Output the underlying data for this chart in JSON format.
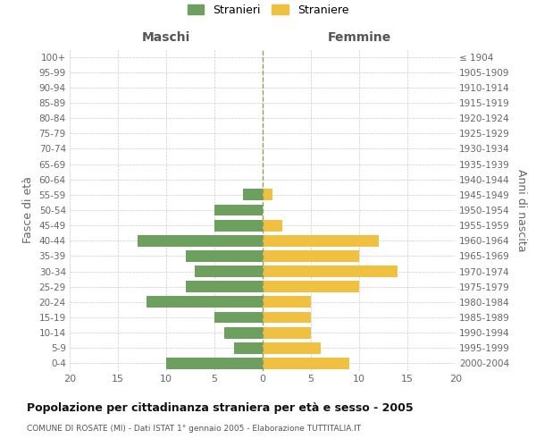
{
  "age_groups": [
    "100+",
    "95-99",
    "90-94",
    "85-89",
    "80-84",
    "75-79",
    "70-74",
    "65-69",
    "60-64",
    "55-59",
    "50-54",
    "45-49",
    "40-44",
    "35-39",
    "30-34",
    "25-29",
    "20-24",
    "15-19",
    "10-14",
    "5-9",
    "0-4"
  ],
  "birth_years": [
    "≤ 1904",
    "1905-1909",
    "1910-1914",
    "1915-1919",
    "1920-1924",
    "1925-1929",
    "1930-1934",
    "1935-1939",
    "1940-1944",
    "1945-1949",
    "1950-1954",
    "1955-1959",
    "1960-1964",
    "1965-1969",
    "1970-1974",
    "1975-1979",
    "1980-1984",
    "1985-1989",
    "1990-1994",
    "1995-1999",
    "2000-2004"
  ],
  "maschi": [
    0,
    0,
    0,
    0,
    0,
    0,
    0,
    0,
    0,
    2,
    5,
    5,
    13,
    8,
    7,
    8,
    12,
    5,
    4,
    3,
    10
  ],
  "femmine": [
    0,
    0,
    0,
    0,
    0,
    0,
    0,
    0,
    0,
    1,
    0,
    2,
    12,
    10,
    14,
    10,
    5,
    5,
    5,
    6,
    9
  ],
  "male_color": "#6d9f5e",
  "female_color": "#f0c040",
  "xlim": 20,
  "title": "Popolazione per cittadinanza straniera per età e sesso - 2005",
  "subtitle": "COMUNE DI ROSATE (MI) - Dati ISTAT 1° gennaio 2005 - Elaborazione TUTTITALIA.IT",
  "ylabel_left": "Fasce di età",
  "ylabel_right": "Anni di nascita",
  "legend_male": "Stranieri",
  "legend_female": "Straniere",
  "header_left": "Maschi",
  "header_right": "Femmine",
  "bg_color": "#ffffff",
  "grid_color": "#cccccc"
}
